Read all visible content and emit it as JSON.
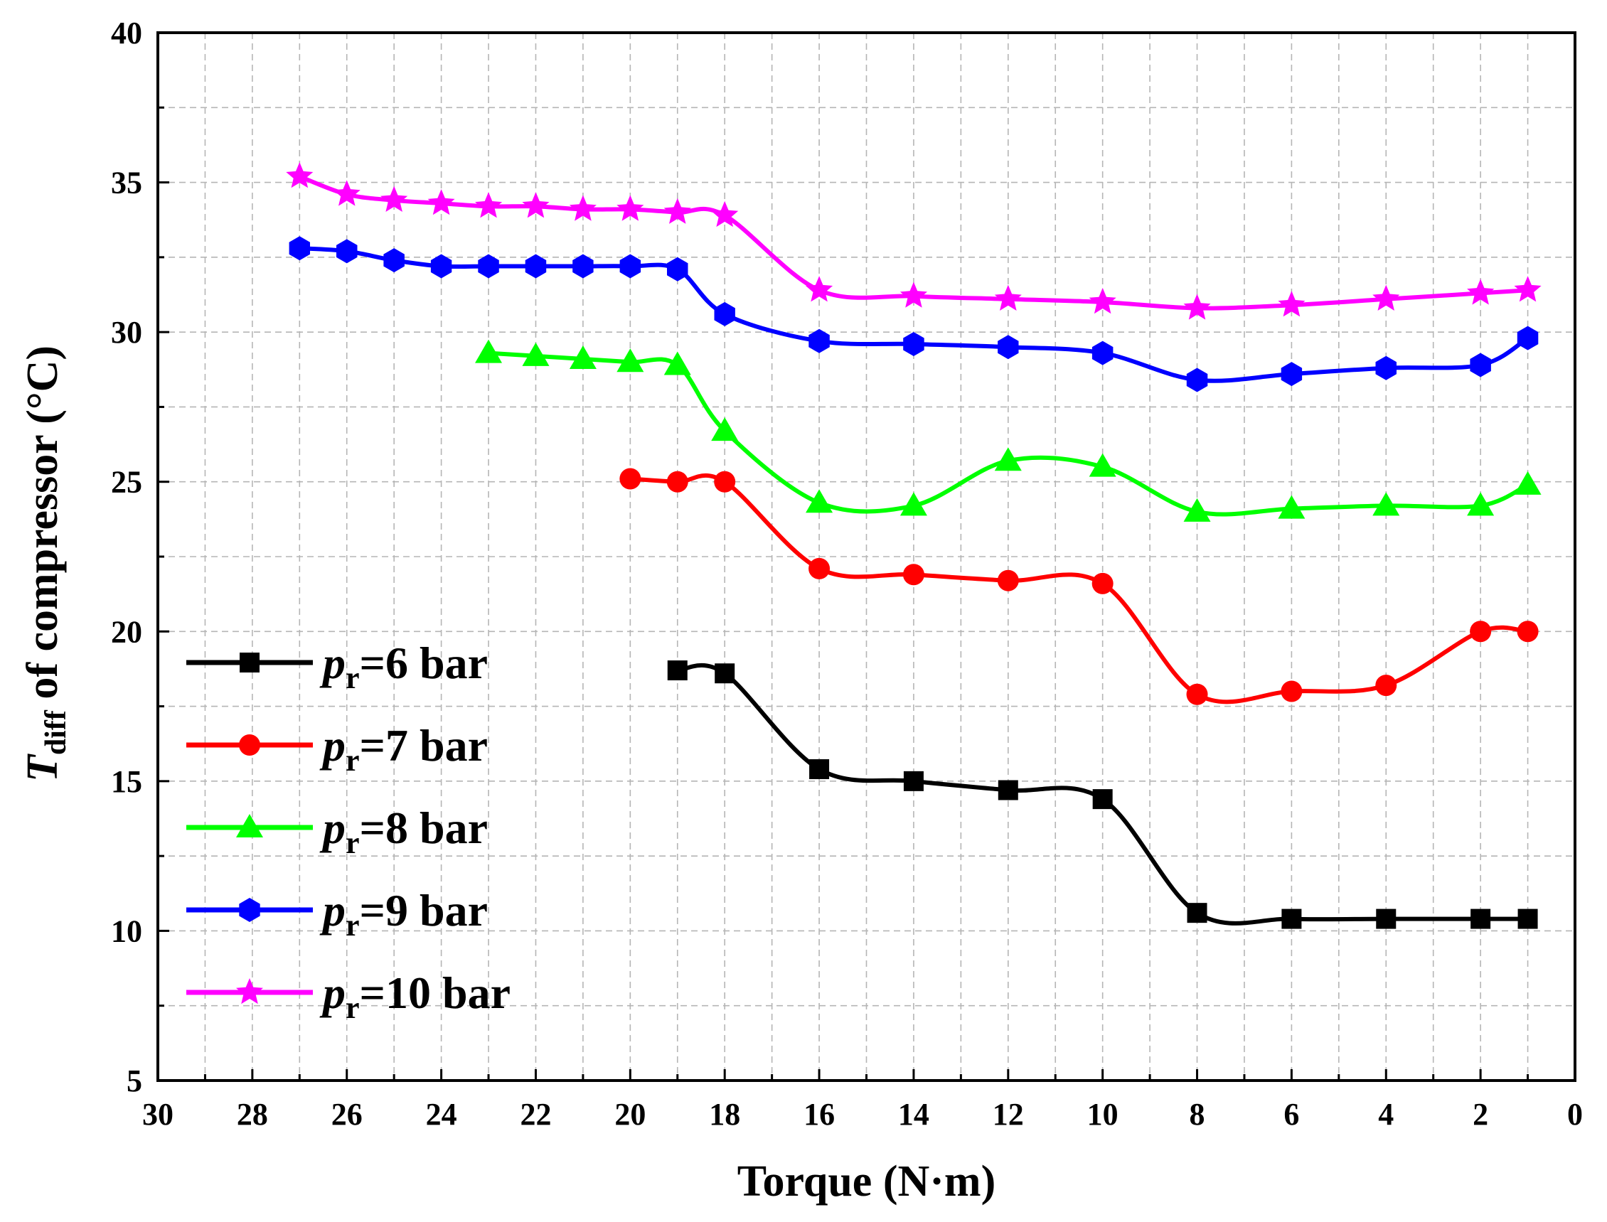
{
  "chart_data": {
    "type": "line",
    "xlabel": "Torque (N·m)",
    "ylabel": {
      "symbol": "T",
      "subscript": "diff",
      "text": " of compressor (°C)"
    },
    "xlim": [
      30,
      0
    ],
    "ylim": [
      5,
      40
    ],
    "x_ticks": [
      30,
      28,
      26,
      24,
      22,
      20,
      18,
      16,
      14,
      12,
      10,
      8,
      6,
      4,
      2,
      0
    ],
    "y_ticks": [
      5,
      10,
      15,
      20,
      25,
      30,
      35,
      40
    ],
    "grid": true,
    "legend_position": "bottom-left",
    "series": [
      {
        "name": "p_r=6 bar",
        "legend_symbol": "p",
        "legend_subscript": "r",
        "legend_rest": "=6 bar",
        "color": "#000000",
        "marker": "square",
        "x": [
          19,
          18,
          16,
          14,
          12,
          10,
          8,
          6,
          4,
          2,
          1
        ],
        "y": [
          18.7,
          18.6,
          15.4,
          15.0,
          14.7,
          14.4,
          10.6,
          10.4,
          10.4,
          10.4,
          10.4
        ]
      },
      {
        "name": "p_r=7 bar",
        "legend_symbol": "p",
        "legend_subscript": "r",
        "legend_rest": "=7 bar",
        "color": "#ff0000",
        "marker": "circle",
        "x": [
          20,
          19,
          18,
          16,
          14,
          12,
          10,
          8,
          6,
          4,
          2,
          1
        ],
        "y": [
          25.1,
          25.0,
          25.0,
          22.1,
          21.9,
          21.7,
          21.6,
          17.9,
          18.0,
          18.2,
          20.0,
          20.0
        ]
      },
      {
        "name": "p_r=8 bar",
        "legend_symbol": "p",
        "legend_subscript": "r",
        "legend_rest": "=8 bar",
        "color": "#00ff00",
        "marker": "triangle",
        "x": [
          23,
          22,
          21,
          20,
          19,
          18,
          16,
          14,
          12,
          10,
          8,
          6,
          4,
          2,
          1
        ],
        "y": [
          29.3,
          29.2,
          29.1,
          29.0,
          28.9,
          26.7,
          24.3,
          24.2,
          25.7,
          25.5,
          24.0,
          24.1,
          24.2,
          24.2,
          24.9
        ]
      },
      {
        "name": "p_r=9 bar",
        "legend_symbol": "p",
        "legend_subscript": "r",
        "legend_rest": "=9 bar",
        "color": "#0000ff",
        "marker": "hexagon",
        "x": [
          27,
          26,
          25,
          24,
          23,
          22,
          21,
          20,
          19,
          18,
          16,
          14,
          12,
          10,
          8,
          6,
          4,
          2,
          1
        ],
        "y": [
          32.8,
          32.7,
          32.4,
          32.2,
          32.2,
          32.2,
          32.2,
          32.2,
          32.1,
          30.6,
          29.7,
          29.6,
          29.5,
          29.3,
          28.4,
          28.6,
          28.8,
          28.9,
          29.8
        ]
      },
      {
        "name": "p_r=10 bar",
        "legend_symbol": "p",
        "legend_subscript": "r",
        "legend_rest": "=10 bar",
        "color": "#ff00ff",
        "marker": "star",
        "x": [
          27,
          26,
          25,
          24,
          23,
          22,
          21,
          20,
          19,
          18,
          16,
          14,
          12,
          10,
          8,
          6,
          4,
          2,
          1
        ],
        "y": [
          35.2,
          34.6,
          34.4,
          34.3,
          34.2,
          34.2,
          34.1,
          34.1,
          34.0,
          33.9,
          31.4,
          31.2,
          31.1,
          31.0,
          30.8,
          30.9,
          31.1,
          31.3,
          31.4
        ]
      }
    ]
  }
}
